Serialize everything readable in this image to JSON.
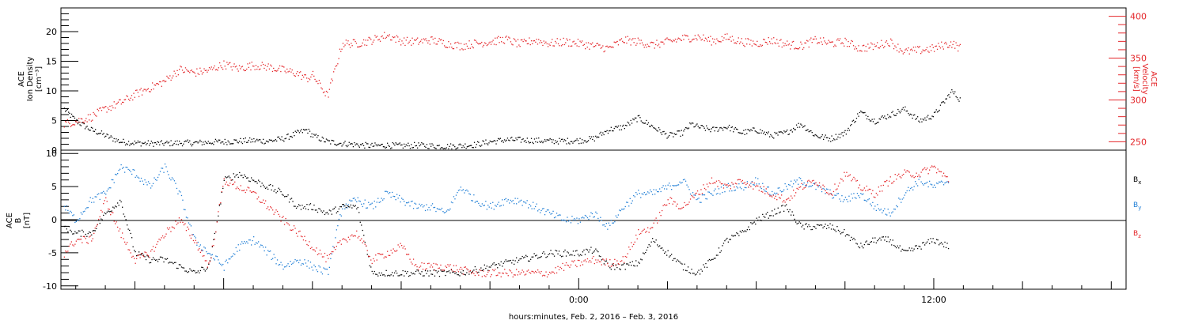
{
  "colors": {
    "frame": "#000000",
    "density": "#000000",
    "velocity": "#e4262a",
    "bx": "#000000",
    "by": "#1f7ed6",
    "bz": "#e4262a"
  },
  "chart_data": [
    {
      "type": "scatter",
      "panel": "top",
      "left_axis_label": [
        "ACE",
        "Ion Density",
        "[cm⁻³]"
      ],
      "right_axis_label": [
        "ACE",
        "Velocity",
        "[km/s]"
      ],
      "left_ylim": [
        0,
        24
      ],
      "left_yticks": [
        "0",
        "5",
        "10",
        "15",
        "20"
      ],
      "right_ylim": [
        240,
        410
      ],
      "right_yticks": [
        "250",
        "300",
        "350",
        "400"
      ],
      "xlim_hours": [
        -17.5,
        18.5
      ],
      "series": [
        {
          "key": "density",
          "axis": "left",
          "x": [
            -17.4,
            -17.0,
            -16.5,
            -16.2,
            -16.0,
            -15.5,
            -15.0,
            -14.5,
            -14.0,
            -13.5,
            -13.0,
            -12.5,
            -12.0,
            -11.5,
            -11.0,
            -10.5,
            -10.0,
            -9.5,
            -9.2,
            -9.0,
            -8.5,
            -8.0,
            -7.5,
            -7.0,
            -6.5,
            -6.0,
            -5.5,
            -5.0,
            -4.5,
            -4.0,
            -3.5,
            -3.0,
            -2.5,
            -2.0,
            -1.5,
            -1.0,
            -0.5,
            0.0,
            0.5,
            1.0,
            1.5,
            2.0,
            2.5,
            3.0,
            3.5,
            3.8,
            4.0,
            4.5,
            5.0,
            5.5,
            6.0,
            6.5,
            7.0,
            7.5,
            8.0,
            8.5,
            9.0,
            9.5,
            10.0,
            10.5,
            11.0,
            11.5,
            12.0,
            12.3,
            12.6,
            12.9
          ],
          "y": [
            7,
            5,
            3.5,
            3,
            2.5,
            1.5,
            1.3,
            1.2,
            1.2,
            1.3,
            1.3,
            1.4,
            1.5,
            1.6,
            1.7,
            1.6,
            2,
            3,
            3.5,
            2.5,
            1.5,
            1.2,
            1,
            0.8,
            0.9,
            0.8,
            0.9,
            0.8,
            0.7,
            0.8,
            1.0,
            1.5,
            1.8,
            1.8,
            1.7,
            1.6,
            1.6,
            1.7,
            2.0,
            3.5,
            4.0,
            5.5,
            4.0,
            2.5,
            3.0,
            4.5,
            4.0,
            3.5,
            4.0,
            3.0,
            3.5,
            2.5,
            3.0,
            4.5,
            2.5,
            2.0,
            3.0,
            6.5,
            5.0,
            6.0,
            7.0,
            5.0,
            6.0,
            8.0,
            10.0,
            8.5
          ]
        },
        {
          "key": "velocity",
          "axis": "right",
          "x": [
            -17.4,
            -17.0,
            -16.5,
            -16.0,
            -15.5,
            -15.0,
            -14.5,
            -14.0,
            -13.5,
            -13.0,
            -12.5,
            -12.0,
            -11.5,
            -11.0,
            -10.5,
            -10.0,
            -9.5,
            -9.2,
            -9.0,
            -8.8,
            -8.5,
            -8.0,
            -7.5,
            -7.0,
            -6.5,
            -6.0,
            -5.5,
            -5.0,
            -4.5,
            -4.0,
            -3.5,
            -3.0,
            -2.5,
            -2.0,
            -1.5,
            -1.0,
            -0.5,
            0.0,
            0.5,
            1.0,
            1.5,
            2.0,
            2.5,
            3.0,
            3.5,
            4.0,
            4.5,
            5.0,
            5.5,
            6.0,
            6.5,
            7.0,
            7.5,
            8.0,
            8.5,
            9.0,
            9.5,
            10.0,
            10.5,
            11.0,
            11.5,
            12.0,
            12.3,
            12.6,
            12.9
          ],
          "y": [
            272,
            275,
            280,
            290,
            297,
            307,
            315,
            323,
            337,
            333,
            336,
            343,
            338,
            342,
            340,
            336,
            332,
            326,
            330,
            320,
            305,
            368,
            368,
            372,
            378,
            371,
            370,
            372,
            368,
            365,
            368,
            370,
            373,
            367,
            372,
            368,
            370,
            368,
            365,
            362,
            372,
            370,
            366,
            370,
            374,
            376,
            371,
            375,
            370,
            368,
            372,
            367,
            365,
            372,
            368,
            370,
            362,
            365,
            370,
            358,
            360,
            362,
            366,
            368,
            362
          ]
        }
      ]
    },
    {
      "type": "scatter",
      "panel": "bottom",
      "left_axis_label": [
        "ACE",
        "B",
        "[nT]"
      ],
      "ylim": [
        -10.5,
        10.5
      ],
      "yticks": [
        "-10",
        "-5",
        "0",
        "5",
        "10"
      ],
      "xlim_hours": [
        -17.5,
        18.5
      ],
      "xtick_labels": [
        "0:00",
        "12:00"
      ],
      "xlabel": "hours:minutes, Feb.  2, 2016 – Feb.  3, 2016",
      "legend": [
        {
          "key": "bx",
          "label": "B",
          "sub": "x"
        },
        {
          "key": "by",
          "label": "B",
          "sub": "y"
        },
        {
          "key": "bz",
          "label": "B",
          "sub": "z"
        }
      ],
      "series": [
        {
          "key": "bx",
          "x": [
            -17.4,
            -17.0,
            -16.5,
            -16.0,
            -15.5,
            -15.0,
            -14.5,
            -14.0,
            -13.5,
            -13.0,
            -12.5,
            -12.0,
            -11.5,
            -11.0,
            -10.5,
            -10.0,
            -9.5,
            -9.0,
            -8.5,
            -8.0,
            -7.5,
            -7.0,
            -6.5,
            -6.0,
            -5.5,
            -5.0,
            -4.5,
            -4.0,
            -3.5,
            -3.0,
            -2.5,
            -2.0,
            -1.5,
            -1.0,
            -0.5,
            0.0,
            0.5,
            1.0,
            1.5,
            2.0,
            2.5,
            3.0,
            3.5,
            4.0,
            4.5,
            5.0,
            5.5,
            6.0,
            6.5,
            7.0,
            7.5,
            8.0,
            8.5,
            9.0,
            9.5,
            10.0,
            10.5,
            11.0,
            11.5,
            12.0,
            12.5
          ],
          "y": [
            -1,
            -2,
            -2,
            1,
            3,
            -5,
            -6,
            -6,
            -7,
            -8,
            -7,
            6,
            7,
            6,
            5,
            4,
            2,
            2,
            1,
            2,
            2,
            -8,
            -8,
            -8,
            -8,
            -8,
            -8,
            -8,
            -7.5,
            -7,
            -6.5,
            -6,
            -5.5,
            -5,
            -5,
            -5,
            -4.5,
            -7,
            -7,
            -6.5,
            -3,
            -5,
            -7,
            -8,
            -6,
            -3,
            -2,
            0,
            1,
            2,
            -1,
            -1,
            -1,
            -2,
            -4,
            -3,
            -3,
            -5,
            -4,
            -3,
            -4
          ]
        },
        {
          "key": "by",
          "x": [
            -17.4,
            -17.0,
            -16.5,
            -16.0,
            -15.5,
            -15.0,
            -14.5,
            -14.0,
            -13.5,
            -13.0,
            -12.5,
            -12.0,
            -11.5,
            -11.0,
            -10.5,
            -10.0,
            -9.5,
            -9.0,
            -8.5,
            -8.0,
            -7.5,
            -7.0,
            -6.5,
            -6.0,
            -5.5,
            -5.0,
            -4.5,
            -4.0,
            -3.5,
            -3.0,
            -2.5,
            -2.0,
            -1.5,
            -1.0,
            -0.5,
            0.0,
            0.5,
            1.0,
            1.5,
            2.0,
            2.5,
            3.0,
            3.5,
            4.0,
            4.5,
            5.0,
            5.5,
            6.0,
            6.5,
            7.0,
            7.5,
            8.0,
            8.5,
            9.0,
            9.5,
            10.0,
            10.5,
            11.0,
            11.5,
            12.0,
            12.5
          ],
          "y": [
            2,
            0,
            3,
            4,
            8,
            7,
            5,
            8,
            4,
            -3,
            -5,
            -7,
            -4,
            -3,
            -5,
            -7,
            -6,
            -7,
            -8,
            2,
            3,
            2,
            4,
            3,
            2,
            2,
            1,
            5,
            3,
            2,
            3,
            3,
            2,
            1,
            0,
            0,
            1,
            -1,
            2,
            4,
            4,
            5,
            6,
            3,
            4,
            5,
            5,
            6,
            4,
            5,
            6,
            5,
            4,
            3,
            4,
            2,
            1,
            4,
            6,
            5,
            6
          ]
        },
        {
          "key": "bz",
          "x": [
            -17.4,
            -17.0,
            -16.5,
            -16.0,
            -15.5,
            -15.0,
            -14.5,
            -14.0,
            -13.5,
            -13.0,
            -12.5,
            -12.0,
            -11.5,
            -11.0,
            -10.5,
            -10.0,
            -9.5,
            -9.0,
            -8.5,
            -8.0,
            -7.5,
            -7.0,
            -6.5,
            -6.0,
            -5.5,
            -5.0,
            -4.5,
            -4.0,
            -3.5,
            -3.0,
            -2.5,
            -2.0,
            -1.5,
            -1.0,
            -0.5,
            0.0,
            0.5,
            1.0,
            1.5,
            2.0,
            2.5,
            3.0,
            3.5,
            4.0,
            4.5,
            5.0,
            5.5,
            6.0,
            6.5,
            7.0,
            7.5,
            8.0,
            8.5,
            9.0,
            9.5,
            10.0,
            10.5,
            11.0,
            11.5,
            12.0,
            12.5
          ],
          "y": [
            -5,
            -3,
            -3,
            3,
            -2,
            -6,
            -5,
            -2,
            0,
            -3,
            -7,
            6,
            5,
            4,
            2,
            0,
            -2,
            -4,
            -6,
            -3,
            -2,
            -6,
            -5,
            -4,
            -7,
            -7,
            -7,
            -7.5,
            -8,
            -8,
            -8,
            -8,
            -8,
            -8,
            -7,
            -6.5,
            -6,
            -6.5,
            -6,
            -2,
            -1,
            3,
            2,
            4,
            6,
            5,
            6,
            5,
            4,
            3,
            5,
            6,
            4,
            7,
            5,
            4,
            6,
            7,
            7,
            8,
            6
          ]
        }
      ]
    }
  ]
}
